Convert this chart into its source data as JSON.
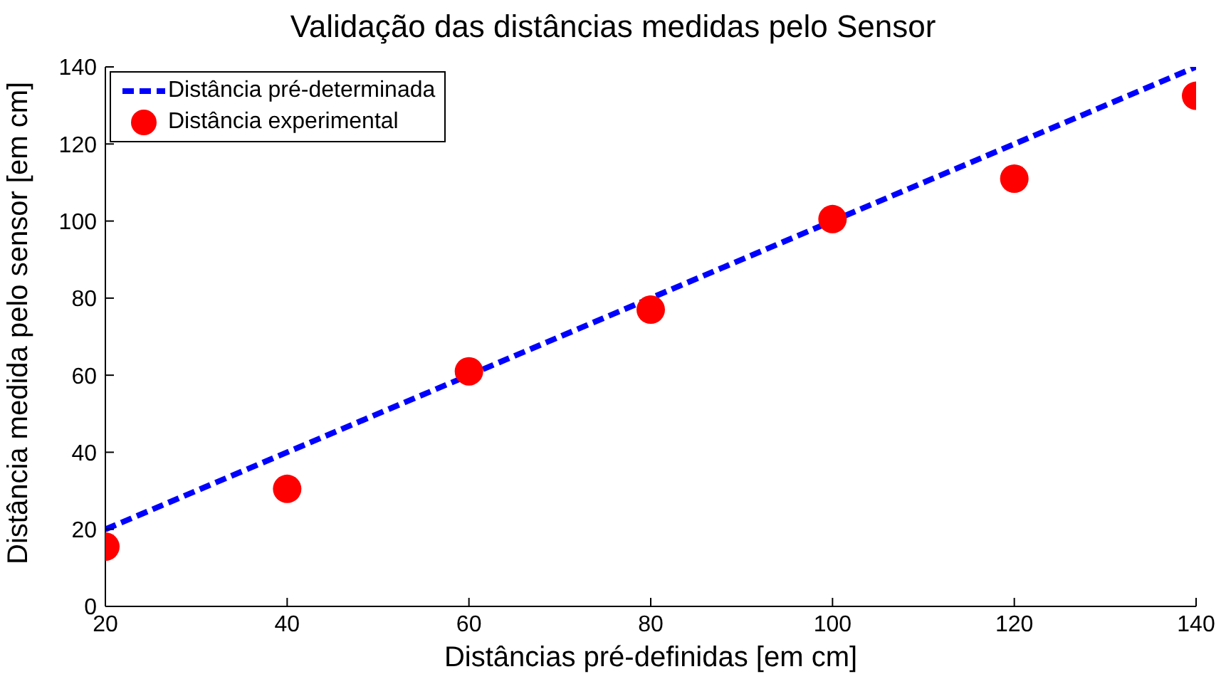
{
  "chart_data": {
    "type": "line",
    "title": "Validação das distâncias medidas pelo Sensor",
    "xlabel": "Distâncias pré-definidas [em cm]",
    "ylabel": "Distância medida pelo sensor [em cm]",
    "series": [
      {
        "name": "Distância pré-determinada",
        "color": "#0000ff",
        "x": [
          20,
          140
        ],
        "values": [
          20,
          140
        ],
        "line_style": "dashed",
        "marker": "none"
      },
      {
        "name": "Distância experimental",
        "type": "scatter",
        "color": "#ff0000",
        "x": [
          20,
          40,
          60,
          80,
          100,
          120,
          140
        ],
        "values": [
          15.5,
          30.5,
          61,
          77,
          100.5,
          111,
          132.5
        ],
        "marker": "circle"
      }
    ],
    "xlim": [
      20,
      140
    ],
    "xticks": [
      20,
      40,
      60,
      80,
      100,
      120,
      140
    ],
    "ylim": [
      0,
      140
    ],
    "yticks": [
      0,
      20,
      40,
      60,
      80,
      100,
      120,
      140
    ],
    "grid": false,
    "legend": "top left"
  }
}
